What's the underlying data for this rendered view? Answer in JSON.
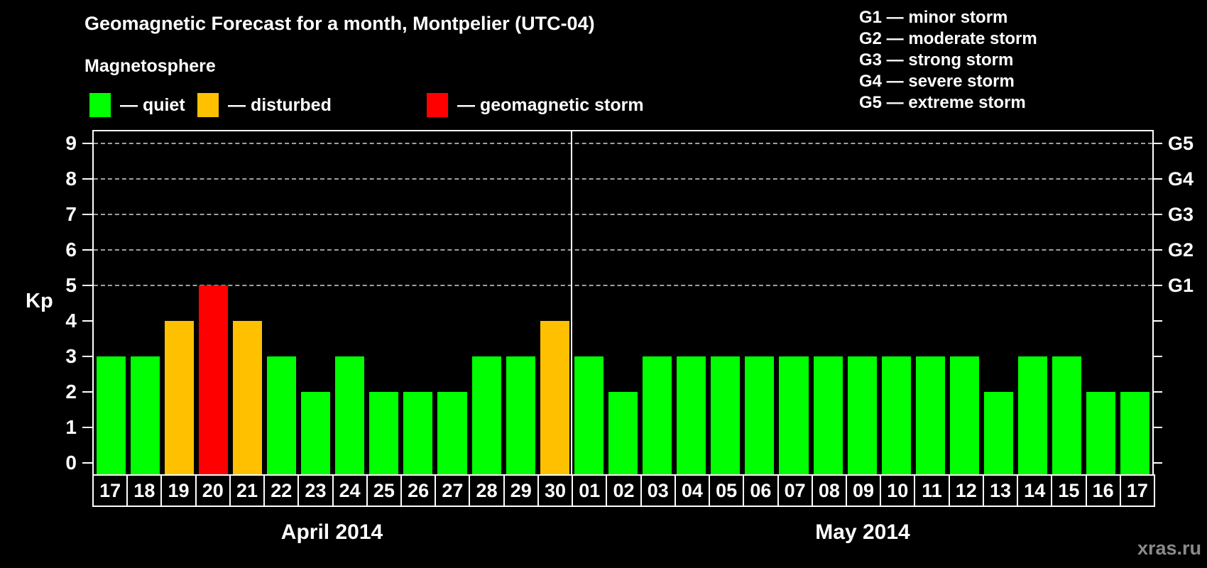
{
  "title": "Geomagnetic Forecast for a month, Montpelier (UTC-04)",
  "subtitle": "Magnetosphere",
  "legend": {
    "items": [
      {
        "key": "quiet",
        "label": "— quiet",
        "color": "#00ff00"
      },
      {
        "key": "disturbed",
        "label": "— disturbed",
        "color": "#ffc000"
      },
      {
        "key": "storm",
        "label": "— geomagnetic storm",
        "color": "#ff0000"
      }
    ]
  },
  "g_scale_legend": [
    {
      "label": "G1 — minor storm"
    },
    {
      "label": "G2 — moderate storm"
    },
    {
      "label": "G3 — strong storm"
    },
    {
      "label": "G4 — severe storm"
    },
    {
      "label": "G5 — extreme storm"
    }
  ],
  "watermark": "xras.ru",
  "chart_data": {
    "type": "bar",
    "title": "Geomagnetic Forecast for a month, Montpelier (UTC-04)",
    "ylabel": "Kp",
    "ylim": [
      0,
      9
    ],
    "yticks": [
      "0",
      "1",
      "2",
      "3",
      "4",
      "5",
      "6",
      "7",
      "8",
      "9"
    ],
    "gridlines_at": [
      5,
      6,
      7,
      8,
      9
    ],
    "grid": "horizontal dashed lines at Kp 5-9 only",
    "legend_position": "top-left (magnetosphere states) and top-right (G storm scale)",
    "right_axis": [
      {
        "label": "G1",
        "kp": 5
      },
      {
        "label": "G2",
        "kp": 6
      },
      {
        "label": "G3",
        "kp": 7
      },
      {
        "label": "G4",
        "kp": 8
      },
      {
        "label": "G5",
        "kp": 9
      }
    ],
    "colors": {
      "quiet": "#00ff00",
      "disturbed": "#ffc000",
      "storm": "#ff0000"
    },
    "months": [
      {
        "label": "April 2014",
        "days": [
          {
            "day": "17",
            "kp": 3,
            "status": "quiet"
          },
          {
            "day": "18",
            "kp": 3,
            "status": "quiet"
          },
          {
            "day": "19",
            "kp": 4,
            "status": "disturbed"
          },
          {
            "day": "20",
            "kp": 5,
            "status": "storm"
          },
          {
            "day": "21",
            "kp": 4,
            "status": "disturbed"
          },
          {
            "day": "22",
            "kp": 3,
            "status": "quiet"
          },
          {
            "day": "23",
            "kp": 2,
            "status": "quiet"
          },
          {
            "day": "24",
            "kp": 3,
            "status": "quiet"
          },
          {
            "day": "25",
            "kp": 2,
            "status": "quiet"
          },
          {
            "day": "26",
            "kp": 2,
            "status": "quiet"
          },
          {
            "day": "27",
            "kp": 2,
            "status": "quiet"
          },
          {
            "day": "28",
            "kp": 3,
            "status": "quiet"
          },
          {
            "day": "29",
            "kp": 3,
            "status": "quiet"
          },
          {
            "day": "30",
            "kp": 4,
            "status": "disturbed"
          }
        ]
      },
      {
        "label": "May 2014",
        "days": [
          {
            "day": "01",
            "kp": 3,
            "status": "quiet"
          },
          {
            "day": "02",
            "kp": 2,
            "status": "quiet"
          },
          {
            "day": "03",
            "kp": 3,
            "status": "quiet"
          },
          {
            "day": "04",
            "kp": 3,
            "status": "quiet"
          },
          {
            "day": "05",
            "kp": 3,
            "status": "quiet"
          },
          {
            "day": "06",
            "kp": 3,
            "status": "quiet"
          },
          {
            "day": "07",
            "kp": 3,
            "status": "quiet"
          },
          {
            "day": "08",
            "kp": 3,
            "status": "quiet"
          },
          {
            "day": "09",
            "kp": 3,
            "status": "quiet"
          },
          {
            "day": "10",
            "kp": 3,
            "status": "quiet"
          },
          {
            "day": "11",
            "kp": 3,
            "status": "quiet"
          },
          {
            "day": "12",
            "kp": 3,
            "status": "quiet"
          },
          {
            "day": "13",
            "kp": 2,
            "status": "quiet"
          },
          {
            "day": "14",
            "kp": 3,
            "status": "quiet"
          },
          {
            "day": "15",
            "kp": 3,
            "status": "quiet"
          },
          {
            "day": "16",
            "kp": 2,
            "status": "quiet"
          },
          {
            "day": "17",
            "kp": 2,
            "status": "quiet"
          }
        ]
      }
    ]
  }
}
